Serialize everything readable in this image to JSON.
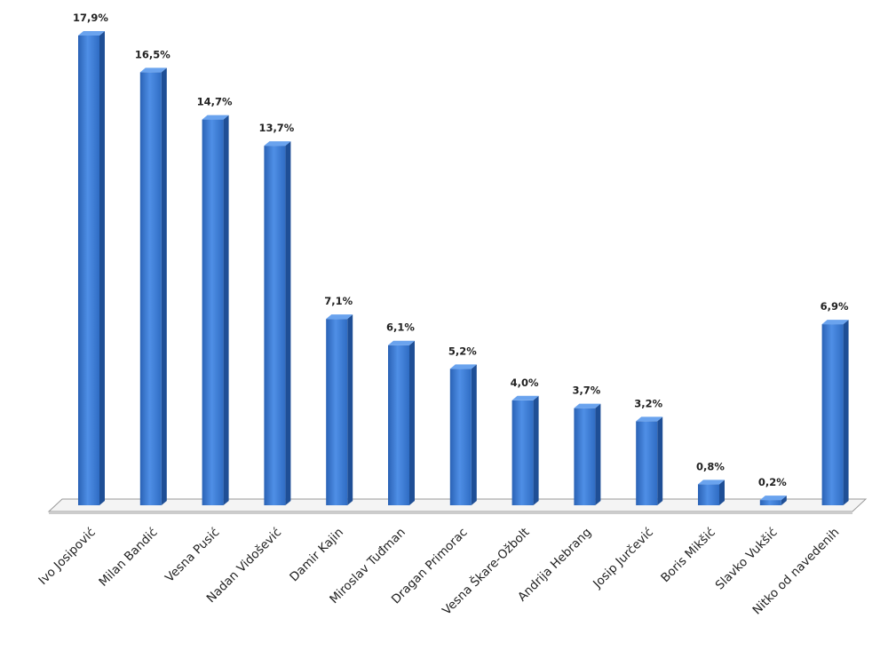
{
  "chart_data": {
    "type": "bar3d",
    "categories": [
      "Ivo Josipović",
      "Milan Bandić",
      "Vesna Pusić",
      "Nadan Vidošević",
      "Damir Kajin",
      "Miroslav Tuđman",
      "Dragan Primorac",
      "Vesna Škare-Ožbolt",
      "Andrija Hebrang",
      "Josip Jurčević",
      "Boris Mikšić",
      "Slavko Vukšić",
      "Nitko od navedenih"
    ],
    "values": [
      17.9,
      16.5,
      14.7,
      13.7,
      7.1,
      6.1,
      5.2,
      4.0,
      3.7,
      3.2,
      0.8,
      0.2,
      6.9
    ],
    "value_labels": [
      "17,9%",
      "16,5%",
      "14,7%",
      "13,7%",
      "7,1%",
      "6,1%",
      "5,2%",
      "4,0%",
      "3,7%",
      "3,2%",
      "0,8%",
      "0,2%",
      "6,9%"
    ],
    "color": "#3a7bd5"
  }
}
